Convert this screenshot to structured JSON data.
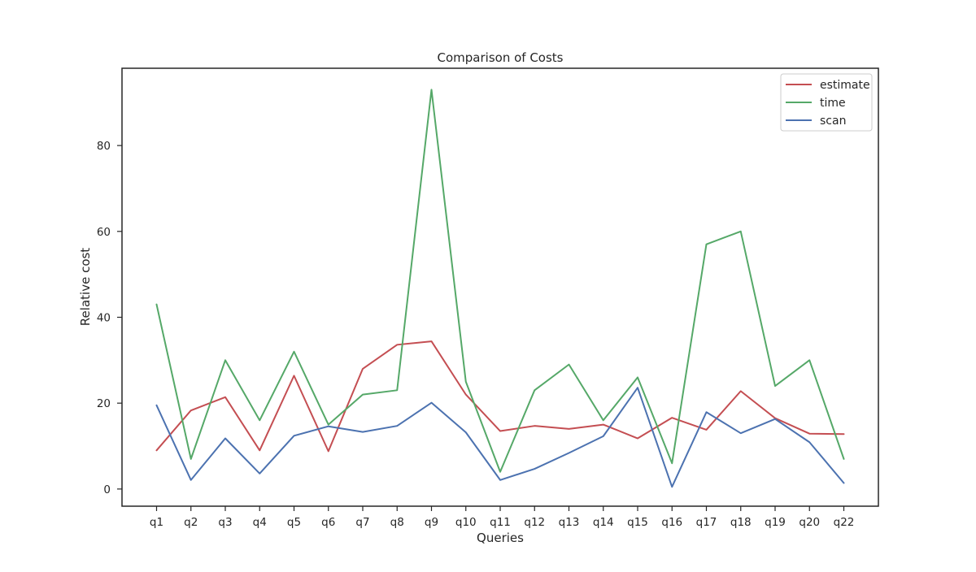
{
  "chart_data": {
    "type": "line",
    "title": "Comparison of Costs",
    "xlabel": "Queries",
    "ylabel": "Relative cost",
    "categories": [
      "q1",
      "q2",
      "q3",
      "q4",
      "q5",
      "q6",
      "q7",
      "q8",
      "q9",
      "q10",
      "q11",
      "q12",
      "q13",
      "q14",
      "q15",
      "q16",
      "q17",
      "q18",
      "q19",
      "q20",
      "q22"
    ],
    "ylim": [
      -4,
      98
    ],
    "yticks": [
      0,
      20,
      40,
      60,
      80
    ],
    "grid": false,
    "legend_position": "top-right",
    "series": [
      {
        "name": "estimate",
        "color": "#c44e52",
        "values": [
          9.0,
          18.3,
          21.4,
          9.0,
          26.4,
          8.8,
          28.0,
          33.6,
          34.4,
          22.0,
          13.5,
          14.7,
          14.0,
          15.0,
          11.8,
          16.6,
          13.8,
          22.8,
          16.5,
          12.9,
          12.8
        ]
      },
      {
        "name": "time",
        "color": "#55a868",
        "values": [
          43,
          7,
          30,
          16,
          32,
          15,
          22,
          23,
          93,
          25,
          4,
          23,
          29,
          16,
          26,
          6,
          57,
          60,
          24,
          30,
          7
        ]
      },
      {
        "name": "scan",
        "color": "#4c72b0",
        "values": [
          19.5,
          2.1,
          11.8,
          3.6,
          12.4,
          14.6,
          13.3,
          14.7,
          20.1,
          13.2,
          2.1,
          4.7,
          8.4,
          12.3,
          23.6,
          0.5,
          17.9,
          13.0,
          16.3,
          10.9,
          1.4
        ]
      }
    ]
  }
}
